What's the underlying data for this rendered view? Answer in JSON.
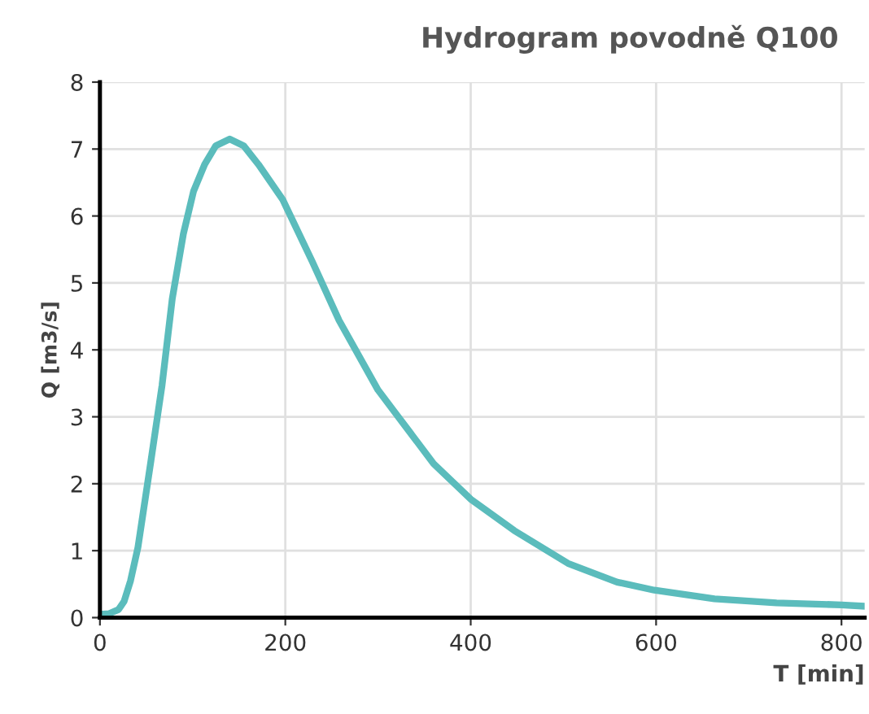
{
  "chart_data": {
    "type": "line",
    "title": "Hydrogram povodně Q100",
    "xlabel": "T [min]",
    "ylabel": "Q [m3/s]",
    "xlim": [
      0,
      825
    ],
    "ylim": [
      0,
      8
    ],
    "xticks": [
      0,
      200,
      400,
      600,
      800
    ],
    "yticks": [
      0,
      1,
      2,
      3,
      4,
      5,
      6,
      7,
      8
    ],
    "grid": true,
    "marker": "none",
    "line_style": "solid",
    "series": [
      {
        "color": "#5bbcbc",
        "x": [
          0,
          10,
          20,
          26,
          33,
          41,
          55,
          67,
          78,
          90,
          101,
          113,
          125,
          140,
          155,
          171,
          197,
          229,
          258,
          300,
          330,
          360,
          400,
          447,
          505,
          558,
          598,
          663,
          730,
          800,
          825
        ],
        "values": [
          0.05,
          0.06,
          0.12,
          0.24,
          0.55,
          1.05,
          2.34,
          3.47,
          4.76,
          5.73,
          6.37,
          6.77,
          7.05,
          7.15,
          7.05,
          6.77,
          6.25,
          5.32,
          4.44,
          3.4,
          2.85,
          2.3,
          1.77,
          1.3,
          0.81,
          0.53,
          0.41,
          0.28,
          0.22,
          0.19,
          0.17
        ]
      }
    ]
  }
}
